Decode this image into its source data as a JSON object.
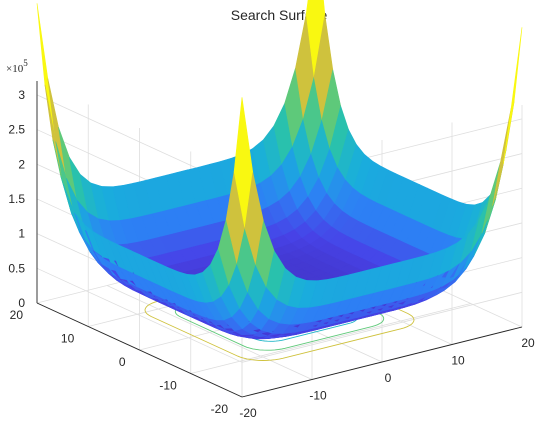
{
  "chart_data": {
    "type": "surface",
    "title": "Search Surface",
    "xlabel": "",
    "ylabel": "",
    "zlabel": "",
    "x_ticks": [
      -20,
      -10,
      0,
      10,
      20
    ],
    "y_ticks": [
      -20,
      -10,
      0,
      10,
      20
    ],
    "z_ticks": [
      0,
      0.5,
      1,
      1.5,
      2,
      2.5,
      3
    ],
    "z_tick_labels": [
      "0",
      "0.5",
      "1",
      "1.5",
      "2",
      "2.5",
      "3"
    ],
    "z_multiplier": "×10",
    "z_multiplier_exp": "5",
    "xlim": [
      -20,
      20
    ],
    "ylim": [
      -20,
      20
    ],
    "zlim": [
      0,
      320000
    ],
    "z_max": 320000,
    "grid": true,
    "colormap": "parula",
    "colormap_stops": [
      "#3e26a8",
      "#4743e8",
      "#2d80f4",
      "#19aedc",
      "#2cc5a3",
      "#7ccb62",
      "#d6c13a",
      "#fdd72e",
      "#f9fb0e"
    ],
    "contours_projected": true,
    "contour_fractions": [
      0.08,
      0.15,
      0.25,
      0.38,
      0.52
    ]
  }
}
